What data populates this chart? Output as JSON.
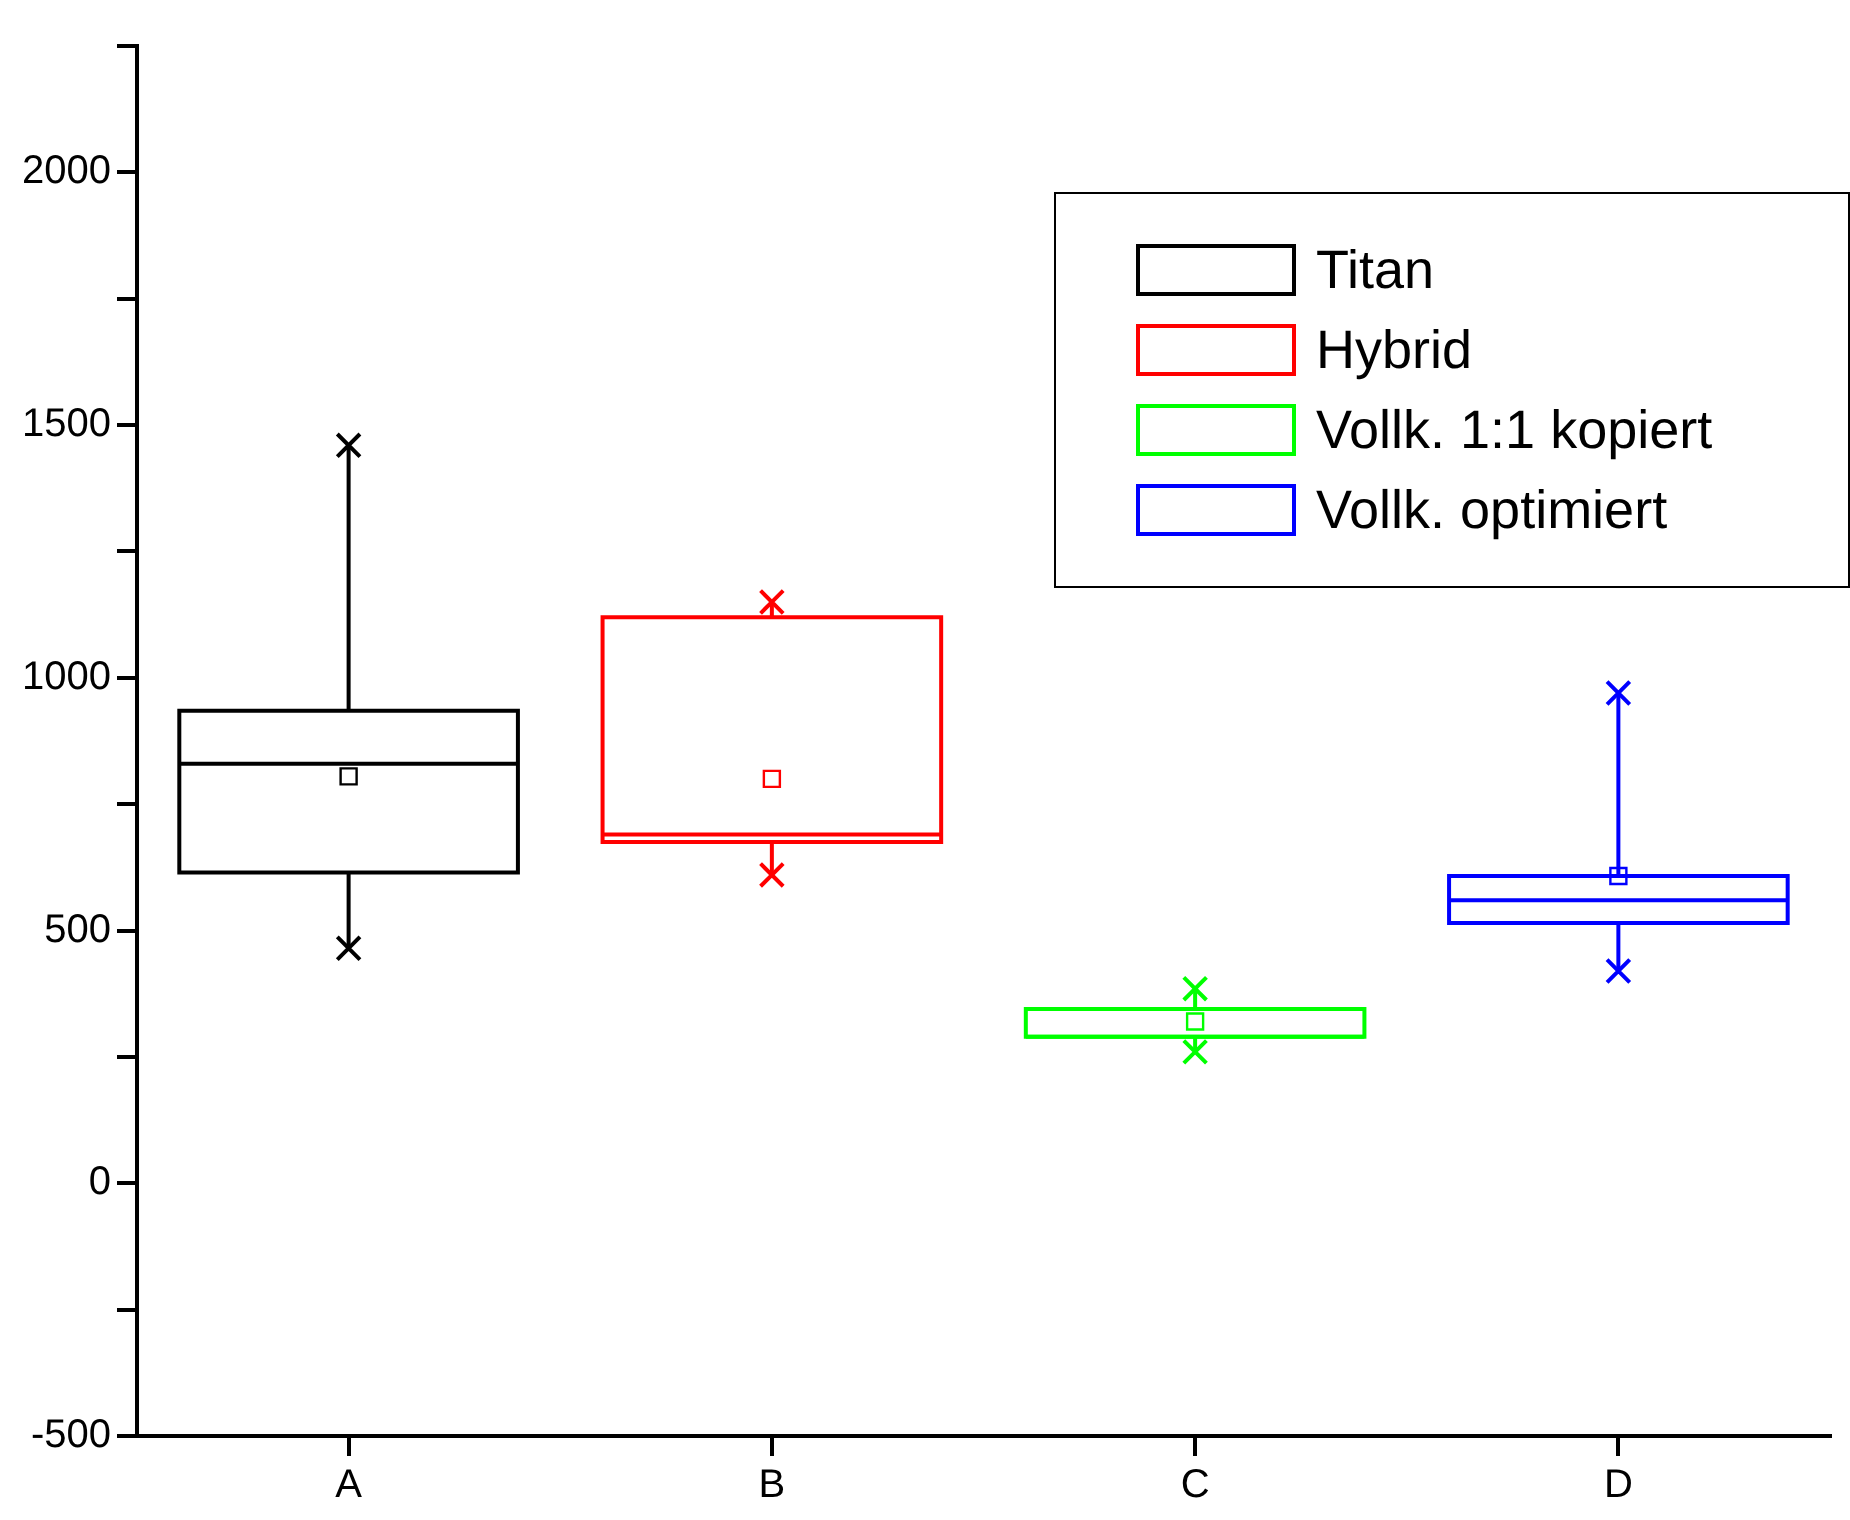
{
  "chart_data": {
    "type": "box",
    "categories": [
      "A",
      "B",
      "C",
      "D"
    ],
    "series": [
      {
        "name": "Titan",
        "color": "#000000",
        "boxes": [
          {
            "low": 465,
            "q1": 615,
            "median": 830,
            "q3": 935,
            "high": 1460,
            "mean": 805
          },
          null,
          null,
          null
        ]
      },
      {
        "name": "Hybrid",
        "color": "#ff0000",
        "boxes": [
          null,
          {
            "low": 610,
            "q1": 675,
            "median": 690,
            "q3": 1120,
            "high": 1150,
            "mean": 800
          },
          null,
          null
        ]
      },
      {
        "name": "Vollk. 1:1 kopiert",
        "color": "#00ff00",
        "boxes": [
          null,
          null,
          {
            "low": 260,
            "q1": 290,
            "median": 290,
            "q3": 345,
            "high": 385,
            "mean": 320
          },
          null
        ]
      },
      {
        "name": "Vollk. optimiert",
        "color": "#0000ff",
        "boxes": [
          null,
          null,
          null,
          {
            "low": 420,
            "q1": 515,
            "median": 560,
            "q3": 608,
            "high": 970,
            "mean": 608
          }
        ]
      },
      {
        "type": "scatter",
        "color": "#000000",
        "x": [
          "A",
          "A"
        ],
        "values": [
          1460,
          465
        ]
      },
      {
        "type": "scatter",
        "color": "#ff0000",
        "x": [
          "B",
          "B"
        ],
        "values": [
          1150,
          610
        ]
      },
      {
        "type": "scatter",
        "color": "#00ff00",
        "x": [
          "C",
          "C"
        ],
        "values": [
          385,
          260
        ]
      },
      {
        "type": "scatter",
        "color": "#0000ff",
        "x": [
          "D",
          "D"
        ],
        "values": [
          970,
          420
        ]
      }
    ],
    "ylim": [
      -500,
      2250
    ],
    "yticks": [
      -500,
      {
        "value": -250,
        "label": null
      },
      0,
      {
        "value": 250,
        "label": null
      },
      500,
      {
        "value": 750,
        "label": null
      },
      1000,
      {
        "value": 1250,
        "label": null
      },
      1500,
      {
        "value": 1750,
        "label": null
      },
      2000,
      {
        "value": 2250,
        "label": null
      }
    ],
    "grid": false,
    "legend": "top right",
    "marker": "cross"
  }
}
